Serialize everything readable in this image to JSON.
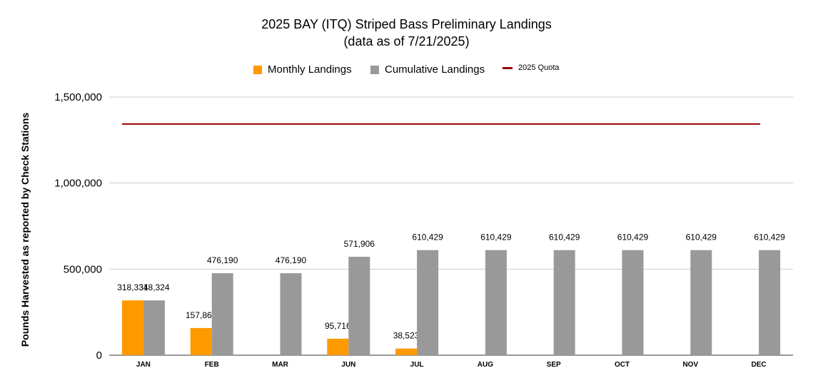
{
  "title_line1": "2025 BAY (ITQ) Striped Bass Preliminary Landings",
  "title_line2": "(data as of 7/21/2025)",
  "colors": {
    "monthly": "#ff9900",
    "cumulative": "#999999",
    "quota": "#990000",
    "grid": "#cccccc"
  },
  "chart_data": {
    "type": "bar",
    "title": "2025 BAY (ITQ) Striped Bass Preliminary Landings",
    "subtitle": "(data as of 7/21/2025)",
    "xlabel": "",
    "ylabel": "Pounds Harvested as reported by Check Stations",
    "ylim": [
      0,
      1500000
    ],
    "yticks": [
      0,
      500000,
      1000000,
      1500000
    ],
    "ytick_labels": [
      "0",
      "500,000",
      "1,000,000",
      "1,500,000"
    ],
    "grid": true,
    "legend_position": "top",
    "categories": [
      "JAN",
      "FEB",
      "MAR",
      "JUN",
      "JUL",
      "AUG",
      "SEP",
      "OCT",
      "NOV",
      "DEC"
    ],
    "series": [
      {
        "name": "Monthly Landings",
        "type": "bar",
        "values": [
          318334,
          157866,
          null,
          95716,
          38523,
          null,
          null,
          null,
          null,
          null
        ],
        "labels": [
          "318,334",
          "157,866",
          "",
          "95,716",
          "38,523",
          "",
          "",
          "",
          "",
          ""
        ]
      },
      {
        "name": "Cumulative Landings",
        "type": "bar",
        "values": [
          318324,
          476190,
          476190,
          571906,
          610429,
          610429,
          610429,
          610429,
          610429,
          610429
        ],
        "labels": [
          "318,324",
          "476,190",
          "476,190",
          "571,906",
          "610,429",
          "610,429",
          "610,429",
          "610,429",
          "610,429",
          "610,429"
        ]
      },
      {
        "name": "2025 Quota",
        "type": "line",
        "values": [
          1343000,
          1343000,
          1343000,
          1343000,
          1343000,
          1343000,
          1343000,
          1343000,
          1343000,
          1343000
        ]
      }
    ]
  }
}
